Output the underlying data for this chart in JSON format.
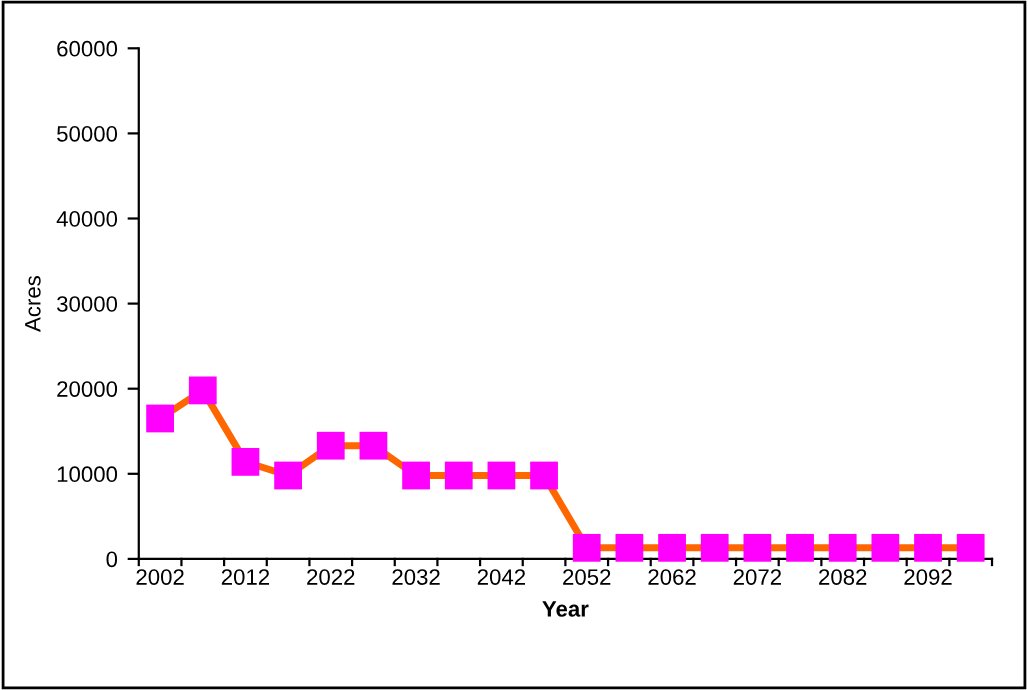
{
  "chart_data": {
    "type": "line",
    "xlabel": "Year",
    "ylabel": "Acres",
    "categories": [
      "2002",
      null,
      "2012",
      null,
      "2022",
      null,
      "2032",
      null,
      "2042",
      null,
      "2052",
      null,
      "2062",
      null,
      "2072",
      null,
      "2082",
      null,
      "2092",
      null
    ],
    "series": [
      {
        "color": "#ff6600",
        "colors": [
          "#ff00ff",
          "#ff00ff",
          "#ff00ff",
          "#ff00ff",
          "#ff00ff",
          "#ff00ff",
          "#ff00ff",
          "#ff00ff",
          "#ff00ff",
          "#ff00ff",
          "#ff00ff",
          "#ff00ff",
          "#ff00ff",
          "#ff00ff",
          "#ff00ff",
          "#ff00ff",
          "#ff00ff",
          "#ff00ff",
          "#ff00ff",
          "#ff00ff"
        ],
        "values": [
          16500,
          19800,
          11400,
          9800,
          13300,
          13300,
          9800,
          9800,
          9800,
          9800,
          1300,
          1300,
          1300,
          1300,
          1300,
          1300,
          1300,
          1300,
          1300,
          1300
        ]
      }
    ],
    "ylim": [
      0,
      60000
    ],
    "yticks": [
      0,
      10000,
      20000,
      30000,
      40000,
      50000,
      60000
    ],
    "marker": "square",
    "grid": false,
    "line_style": "solid"
  }
}
